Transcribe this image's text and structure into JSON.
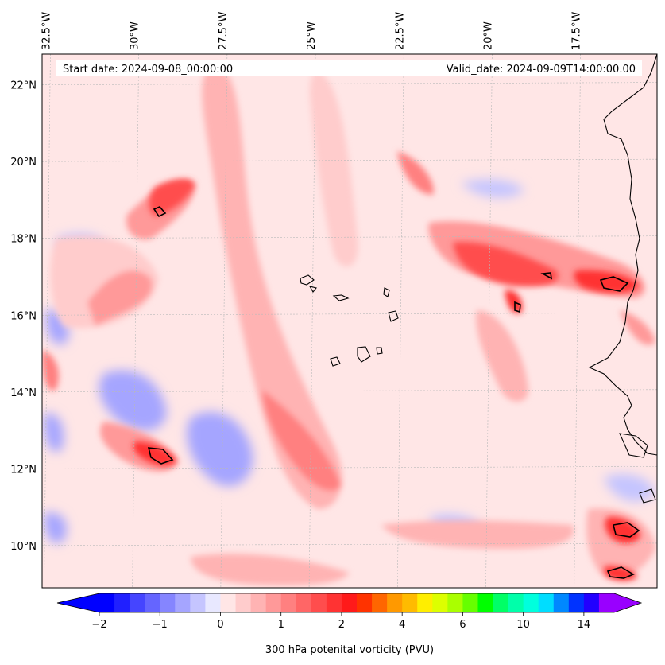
{
  "chart_data": {
    "type": "heatmap",
    "map_header": {
      "start_label": "Start date: 2024-09-08_00:00:00",
      "valid_label": "Valid_date: 2024-09-09T14:00:00.00"
    },
    "longitude_labels": [
      "32.5°W",
      "30°W",
      "27.5°W",
      "25°W",
      "22.5°W",
      "20°W",
      "17.5°W"
    ],
    "longitudes": [
      -32.5,
      -30,
      -27.5,
      -25,
      -22.5,
      -20,
      -17.5
    ],
    "latitude_labels": [
      "22°N",
      "20°N",
      "18°N",
      "16°N",
      "14°N",
      "12°N",
      "10°N"
    ],
    "latitudes": [
      22,
      20,
      18,
      16,
      14,
      12,
      10
    ],
    "xlim": [
      -32.6,
      -15.2
    ],
    "ylim": [
      8.9,
      22.8
    ],
    "grid": true,
    "colorbar": {
      "label": "300 hPa potenital vorticity (PVU)",
      "tick_labels": [
        "−2",
        "−1",
        "0",
        "1",
        "2",
        "4",
        "6",
        "10",
        "14"
      ],
      "levels": [
        -2,
        -1.75,
        -1.5,
        -1.25,
        -1,
        -0.75,
        -0.5,
        -0.25,
        0,
        0.25,
        0.5,
        0.75,
        1,
        1.25,
        1.5,
        1.75,
        2,
        2.5,
        3,
        3.5,
        4,
        4.5,
        5,
        5.5,
        6,
        7,
        8,
        9,
        10,
        11,
        12,
        13,
        14,
        15,
        16
      ],
      "extend": "both",
      "colors": [
        "#0000ff",
        "#2020ff",
        "#4545ff",
        "#6565ff",
        "#8585ff",
        "#a5a5ff",
        "#c5c5ff",
        "#e8e8ff",
        "#ffe6e6",
        "#ffcccc",
        "#ffb3b3",
        "#ff9999",
        "#ff8080",
        "#ff6666",
        "#ff4d4d",
        "#ff3333",
        "#ff1a1a",
        "#ff3300",
        "#ff6600",
        "#ff9900",
        "#ffbb00",
        "#ffee00",
        "#ddff00",
        "#aaff00",
        "#66ff00",
        "#00ff00",
        "#00ff66",
        "#00ffaa",
        "#00ffdd",
        "#00ddff",
        "#0088ff",
        "#0033ff",
        "#2200ff",
        "#9900ff"
      ]
    },
    "features": [
      {
        "name": "PV maximum, west Africa coast near 16.7°N",
        "lon": -15.9,
        "lat": 16.7,
        "value": 2.5
      },
      {
        "name": "PV maximum near 16.4°N 19.6°W",
        "lon": -19.7,
        "lat": 16.5,
        "value": 2.0
      },
      {
        "name": "PV maximum near 12.4°N 29.5°W",
        "lon": -29.5,
        "lat": 12.4,
        "value": 2.0
      },
      {
        "name": "PV maximum near 18.7°N 29.3°W",
        "lon": -29.4,
        "lat": 18.7,
        "value": 2.0
      },
      {
        "name": "PV maximum near 10.3°N 15.6°W",
        "lon": -15.6,
        "lat": 10.3,
        "value": 2.0
      },
      {
        "name": "PV maximum near 9.2°N 15.8°W",
        "lon": -15.8,
        "lat": 9.3,
        "value": 2.0
      },
      {
        "name": "negative PV band near 12°N 27°W",
        "lon": -27.2,
        "lat": 12.2,
        "value": -1.25
      },
      {
        "name": "negative PV band near 13°N 30.5°W",
        "lon": -30.5,
        "lat": 13.2,
        "value": -1.0
      }
    ]
  }
}
